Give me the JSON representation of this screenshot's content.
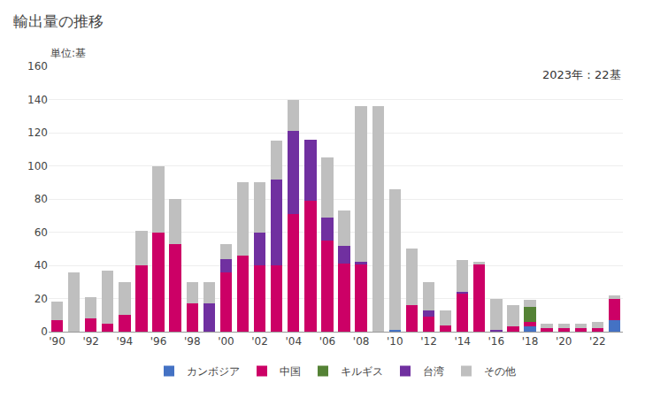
{
  "chart_data": {
    "type": "bar",
    "stacked": true,
    "title": "輸出量の推移",
    "ylabel": "単位:基",
    "annotation": "2023年：22基",
    "categories": [
      "'90",
      null,
      "'92",
      null,
      "'94",
      null,
      "'96",
      null,
      "'98",
      null,
      "'00",
      null,
      "'02",
      null,
      "'04",
      null,
      "'06",
      null,
      "'08",
      null,
      "'10",
      null,
      "'12",
      null,
      "'14",
      null,
      "'16",
      null,
      "'18",
      null,
      "'20",
      null,
      "'22",
      null
    ],
    "series": [
      {
        "name": "カンボジア",
        "color": "#4472C4",
        "values": [
          0,
          0,
          0,
          0,
          0,
          0,
          0,
          0,
          0,
          0,
          0,
          0,
          0,
          0,
          0,
          0,
          0,
          0,
          0,
          0,
          1,
          0,
          0,
          0,
          0,
          0,
          0,
          0,
          3,
          0,
          0,
          0,
          0,
          7
        ]
      },
      {
        "name": "中国",
        "color": "#CC0066",
        "values": [
          7,
          0,
          8,
          5,
          10,
          40,
          60,
          53,
          17,
          0,
          36,
          46,
          40,
          40,
          71,
          79,
          55,
          41,
          41,
          0,
          0,
          16,
          9,
          4,
          23,
          41,
          0,
          3,
          3,
          2,
          2,
          2,
          2,
          13
        ]
      },
      {
        "name": "キルギス",
        "color": "#548235",
        "values": [
          0,
          0,
          0,
          0,
          0,
          0,
          0,
          0,
          0,
          0,
          0,
          0,
          0,
          0,
          0,
          0,
          0,
          0,
          0,
          0,
          0,
          0,
          0,
          0,
          0,
          0,
          0,
          0,
          9,
          0,
          0,
          0,
          0,
          0
        ]
      },
      {
        "name": "台湾",
        "color": "#7030A0",
        "values": [
          0,
          0,
          0,
          0,
          0,
          0,
          0,
          0,
          0,
          17,
          8,
          0,
          20,
          52,
          50,
          37,
          14,
          11,
          1,
          0,
          0,
          0,
          4,
          0,
          1,
          0,
          1,
          0,
          0,
          0,
          0,
          0,
          0,
          0
        ]
      },
      {
        "name": "その他",
        "color": "#BFBFBF",
        "values": [
          11,
          36,
          13,
          32,
          20,
          21,
          40,
          27,
          13,
          13,
          9,
          44,
          30,
          23,
          19,
          0,
          36,
          21,
          94,
          136,
          85,
          34,
          17,
          9,
          19,
          1,
          19,
          13,
          4,
          3,
          3,
          3,
          4,
          2
        ]
      }
    ],
    "ylim": [
      0,
      160
    ],
    "yticks": [
      0,
      20,
      40,
      60,
      80,
      100,
      120,
      140,
      160
    ],
    "grid": true,
    "legend": "bottom"
  }
}
